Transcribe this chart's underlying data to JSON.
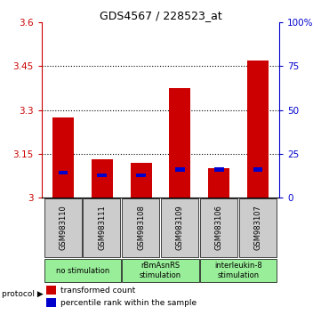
{
  "title": "GDS4567 / 228523_at",
  "samples": [
    "GSM983110",
    "GSM983111",
    "GSM983108",
    "GSM983109",
    "GSM983106",
    "GSM983107"
  ],
  "red_values": [
    3.275,
    3.13,
    3.12,
    3.375,
    3.1,
    3.47
  ],
  "blue_values": [
    3.08,
    3.07,
    3.07,
    3.09,
    3.09,
    3.09
  ],
  "ylim_left": [
    3.0,
    3.6
  ],
  "ylim_right": [
    0,
    100
  ],
  "yticks_left": [
    3.0,
    3.15,
    3.3,
    3.45,
    3.6
  ],
  "yticks_right": [
    0,
    25,
    50,
    75,
    100
  ],
  "yticklabels_left": [
    "3",
    "3.15",
    "3.3",
    "3.45",
    "3.6"
  ],
  "yticklabels_right": [
    "0",
    "25",
    "50",
    "75",
    "100%"
  ],
  "bar_color_red": "#cc0000",
  "bar_color_blue": "#0000cc",
  "bar_width": 0.55,
  "base_value": 3.0,
  "left_axis_color": "#cc0000",
  "right_axis_color": "#0000cc",
  "proto_groups": [
    [
      0,
      1,
      "no stimulation"
    ],
    [
      2,
      3,
      "rBmAsnRS\nstimulation"
    ],
    [
      4,
      5,
      "interleukin-8\nstimulation"
    ]
  ],
  "proto_color": "#99ee99",
  "sample_bg": "#cccccc",
  "legend_red": "transformed count",
  "legend_blue": "percentile rank within the sample"
}
